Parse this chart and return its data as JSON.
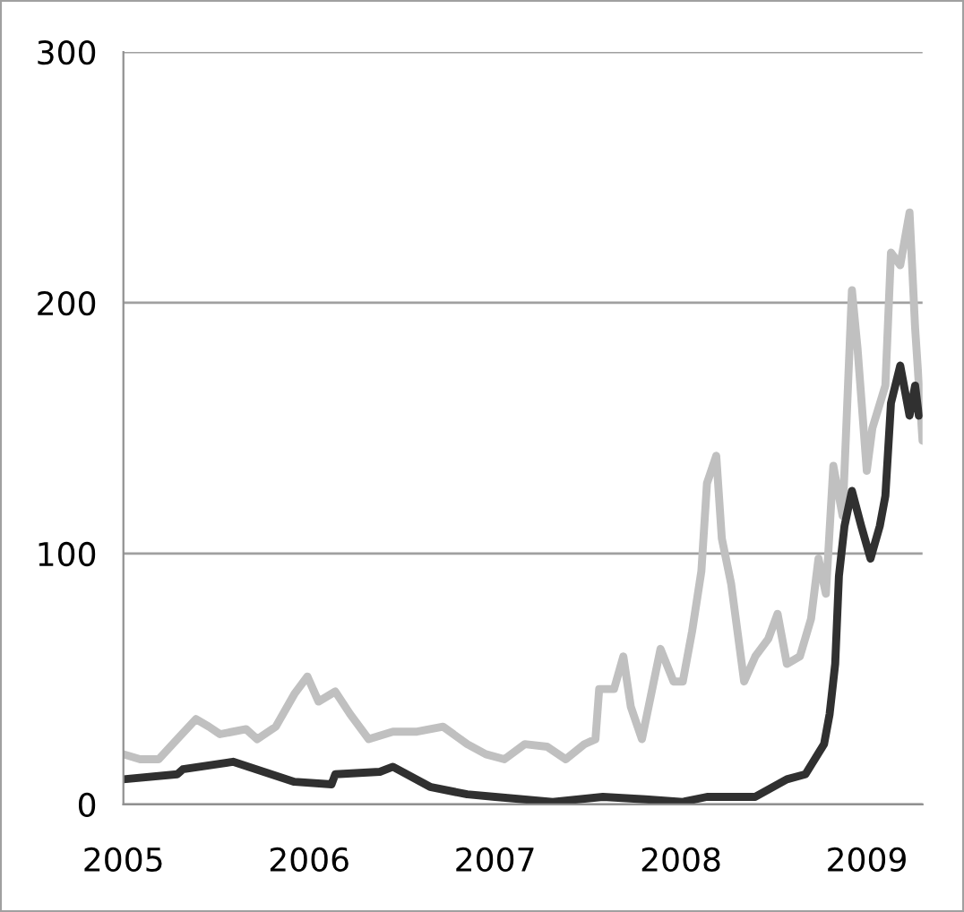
{
  "chart_data": {
    "type": "line",
    "xlim": [
      2005,
      2009.3
    ],
    "xticks": [
      2005,
      2006,
      2007,
      2008,
      2009
    ],
    "ylim": [
      0,
      300
    ],
    "yticks": [
      0,
      100,
      200,
      300
    ],
    "grid": "y",
    "marker": "none",
    "line_style": "solid",
    "series": [
      {
        "color": "#c0c0c0",
        "x": [
          2005.0,
          2005.09,
          2005.19,
          2005.29,
          2005.39,
          2005.46,
          2005.52,
          2005.66,
          2005.72,
          2005.82,
          2005.92,
          2005.99,
          2006.05,
          2006.14,
          2006.22,
          2006.32,
          2006.45,
          2006.58,
          2006.72,
          2006.85,
          2006.95,
          2007.05,
          2007.16,
          2007.28,
          2007.38,
          2007.48,
          2007.54,
          2007.56,
          2007.64,
          2007.69,
          2007.73,
          2007.79,
          2007.89,
          2007.96,
          2008.01,
          2008.06,
          2008.11,
          2008.14,
          2008.19,
          2008.22,
          2008.27,
          2008.34,
          2008.4,
          2008.47,
          2008.52,
          2008.57,
          2008.64,
          2008.7,
          2008.74,
          2008.78,
          2008.82,
          2008.87,
          2008.92,
          2008.95,
          2009.0,
          2009.03,
          2009.1,
          2009.13,
          2009.18,
          2009.23,
          2009.26,
          2009.3
        ],
        "values": [
          20,
          18,
          18,
          26,
          34,
          31,
          28,
          30,
          26,
          31,
          44,
          51,
          41,
          45,
          36,
          26,
          29,
          29,
          31,
          24,
          20,
          18,
          24,
          23,
          18,
          24,
          26,
          46,
          46,
          59,
          39,
          26,
          62,
          49,
          49,
          69,
          93,
          128,
          139,
          106,
          88,
          49,
          59,
          66,
          76,
          56,
          59,
          74,
          98,
          84,
          135,
          115,
          205,
          182,
          133,
          150,
          167,
          220,
          215,
          236,
          190,
          145
        ]
      },
      {
        "color": "#303030",
        "x": [
          2005.0,
          2005.29,
          2005.32,
          2005.59,
          2005.92,
          2006.12,
          2006.14,
          2006.38,
          2006.45,
          2006.65,
          2006.85,
          2007.0,
          2007.31,
          2007.58,
          2007.81,
          2008.01,
          2008.14,
          2008.4,
          2008.57,
          2008.67,
          2008.77,
          2008.8,
          2008.83,
          2008.85,
          2008.88,
          2008.92,
          2008.97,
          2009.02,
          2009.07,
          2009.1,
          2009.13,
          2009.18,
          2009.23,
          2009.26,
          2009.28
        ],
        "values": [
          10,
          12,
          14,
          17,
          9,
          8,
          12,
          13,
          15,
          7,
          4,
          3,
          1,
          3,
          2,
          1,
          3,
          3,
          10,
          12,
          24,
          36,
          56,
          91,
          111,
          125,
          111,
          98,
          111,
          123,
          160,
          175,
          155,
          167,
          155
        ]
      }
    ]
  }
}
